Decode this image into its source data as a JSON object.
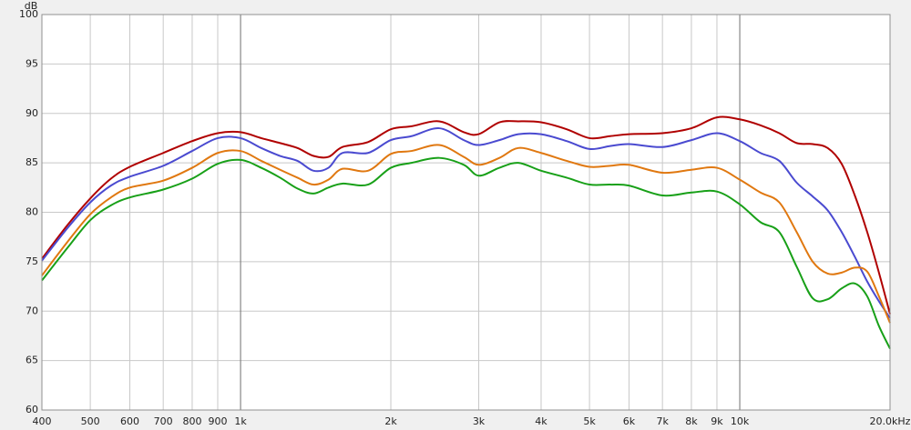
{
  "chart_data": {
    "type": "line",
    "xscale": "log",
    "grid": true,
    "y_label": "dB",
    "x": [
      400,
      450,
      500,
      550,
      600,
      700,
      800,
      900,
      1000,
      1100,
      1200,
      1300,
      1400,
      1500,
      1600,
      1800,
      2000,
      2200,
      2500,
      2800,
      3000,
      3300,
      3600,
      4000,
      4500,
      5000,
      5500,
      6000,
      7000,
      8000,
      9000,
      10000,
      11000,
      12000,
      13000,
      14000,
      15000,
      16000,
      17000,
      18000,
      19000,
      20000
    ],
    "series": [
      {
        "color": "#b00000",
        "values": [
          75.3,
          78.7,
          81.4,
          83.4,
          84.6,
          86.0,
          87.2,
          88.0,
          88.1,
          87.5,
          87.0,
          86.5,
          85.7,
          85.6,
          86.6,
          87.1,
          88.4,
          88.7,
          89.2,
          88.1,
          87.9,
          89.1,
          89.2,
          89.1,
          88.4,
          87.5,
          87.7,
          87.9,
          88.0,
          88.5,
          89.6,
          89.4,
          88.8,
          88.0,
          87.0,
          86.9,
          86.5,
          84.9,
          81.7,
          78.0,
          73.9,
          69.7
        ]
      },
      {
        "color": "#4a4ad0",
        "values": [
          75.1,
          78.4,
          81.0,
          82.7,
          83.6,
          84.7,
          86.2,
          87.5,
          87.5,
          86.5,
          85.7,
          85.2,
          84.2,
          84.5,
          86.0,
          86.0,
          87.3,
          87.7,
          88.5,
          87.3,
          86.8,
          87.3,
          87.9,
          87.9,
          87.2,
          86.4,
          86.7,
          86.9,
          86.6,
          87.3,
          88.0,
          87.2,
          86.0,
          85.2,
          83.0,
          81.6,
          80.2,
          78.0,
          75.5,
          73.0,
          71.0,
          69.3
        ]
      },
      {
        "color": "#e07810",
        "values": [
          73.6,
          77.0,
          79.8,
          81.5,
          82.5,
          83.2,
          84.5,
          86.0,
          86.2,
          85.2,
          84.3,
          83.5,
          82.8,
          83.3,
          84.4,
          84.2,
          85.9,
          86.2,
          86.8,
          85.6,
          84.8,
          85.5,
          86.5,
          86.0,
          85.2,
          84.6,
          84.7,
          84.8,
          84.0,
          84.3,
          84.5,
          83.3,
          82.0,
          81.0,
          78.0,
          75.0,
          73.8,
          73.9,
          74.4,
          74.0,
          71.5,
          68.8
        ]
      },
      {
        "color": "#18a018",
        "values": [
          73.1,
          76.4,
          79.2,
          80.7,
          81.5,
          82.3,
          83.4,
          84.9,
          85.3,
          84.5,
          83.5,
          82.4,
          81.9,
          82.5,
          82.9,
          82.8,
          84.5,
          85.0,
          85.5,
          84.8,
          83.7,
          84.5,
          85.0,
          84.2,
          83.5,
          82.8,
          82.8,
          82.7,
          81.7,
          82.0,
          82.1,
          80.8,
          79.0,
          78.0,
          74.5,
          71.3,
          71.2,
          72.3,
          72.8,
          71.5,
          68.5,
          66.2
        ]
      }
    ],
    "xlim": [
      400,
      20000
    ],
    "xticks": [
      400,
      500,
      600,
      700,
      800,
      900,
      {
        "value": 1000,
        "label": "1k"
      },
      {
        "value": 2000,
        "label": "2k"
      },
      {
        "value": 3000,
        "label": "3k"
      },
      {
        "value": 4000,
        "label": "4k"
      },
      {
        "value": 5000,
        "label": "5k"
      },
      {
        "value": 6000,
        "label": "6k"
      },
      {
        "value": 7000,
        "label": "7k"
      },
      {
        "value": 8000,
        "label": "8k"
      },
      {
        "value": 9000,
        "label": "9k"
      },
      {
        "value": 10000,
        "label": "10k"
      },
      {
        "value": 20000,
        "label": "20.0kHz"
      }
    ],
    "ylim": [
      60,
      100
    ],
    "yticks": [
      60,
      65,
      70,
      75,
      80,
      85,
      90,
      95,
      100
    ]
  }
}
